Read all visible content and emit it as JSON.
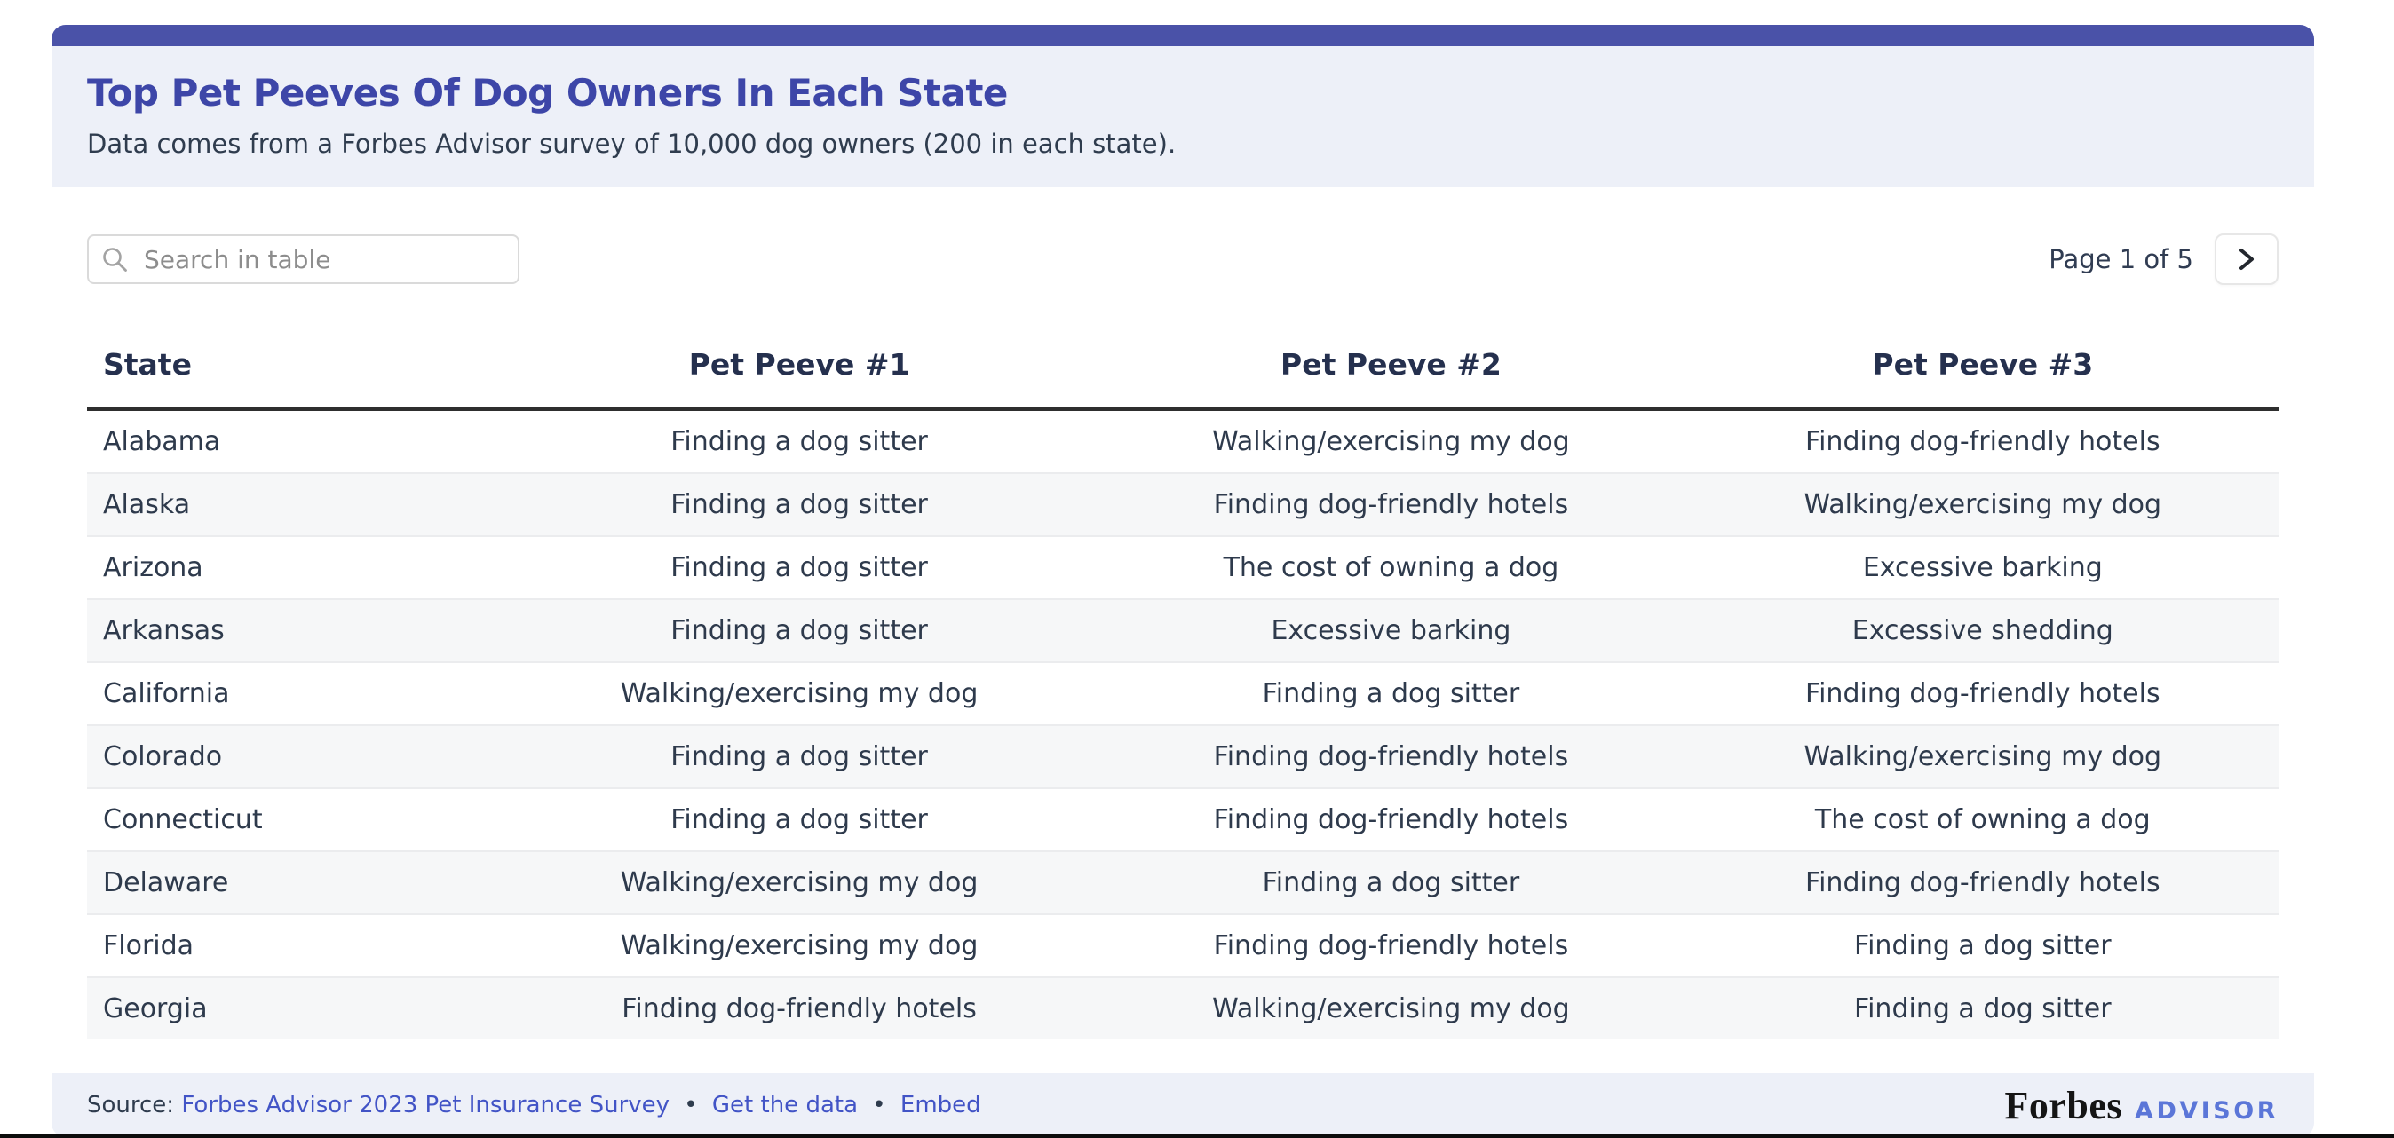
{
  "colors": {
    "bar": "#4a52a8",
    "panel": "#edf0f8",
    "title": "#3d46a8",
    "subtitle_text": "#2f3c4e",
    "header_text": "#25304e",
    "body_text": "#2e3a4c",
    "stripe": "#f6f7f8",
    "divider": "#ebecee",
    "header_rule": "#2e2e2e",
    "link": "#4254c6",
    "advisor": "#5b76d8",
    "page_text": "#303c52",
    "black_line": "#0c0c0c"
  },
  "header": {
    "title": "Top Pet Peeves Of Dog Owners In Each State",
    "subtitle": "Data comes from a Forbes Advisor survey of 10,000 dog owners (200 in each state)."
  },
  "toolbar": {
    "search_placeholder": "Search in table",
    "search_icon": "magnifier-icon",
    "pagination_label": "Page 1 of 5",
    "next_icon": "chevron-right-icon"
  },
  "table": {
    "columns": [
      "State",
      "Pet Peeve #1",
      "Pet Peeve #2",
      "Pet Peeve #3"
    ],
    "rows": [
      [
        "Alabama",
        "Finding a dog sitter",
        "Walking/exercising my dog",
        "Finding dog-friendly hotels"
      ],
      [
        "Alaska",
        "Finding a dog sitter",
        "Finding dog-friendly hotels",
        "Walking/exercising my dog"
      ],
      [
        "Arizona",
        "Finding a dog sitter",
        "The cost of owning a dog",
        "Excessive barking"
      ],
      [
        "Arkansas",
        "Finding a dog sitter",
        "Excessive barking",
        "Excessive shedding"
      ],
      [
        "California",
        "Walking/exercising my dog",
        "Finding a dog sitter",
        "Finding dog-friendly hotels"
      ],
      [
        "Colorado",
        "Finding a dog sitter",
        "Finding dog-friendly hotels",
        "Walking/exercising my dog"
      ],
      [
        "Connecticut",
        "Finding a dog sitter",
        "Finding dog-friendly hotels",
        "The cost of owning a dog"
      ],
      [
        "Delaware",
        "Walking/exercising my dog",
        "Finding a dog sitter",
        "Finding dog-friendly hotels"
      ],
      [
        "Florida",
        "Walking/exercising my dog",
        "Finding dog-friendly hotels",
        "Finding a dog sitter"
      ],
      [
        "Georgia",
        "Finding dog-friendly hotels",
        "Walking/exercising my dog",
        "Finding a dog sitter"
      ]
    ]
  },
  "footer": {
    "source_prefix": "Source:",
    "separator": "•",
    "links": [
      {
        "label": "Forbes Advisor 2023 Pet Insurance Survey"
      },
      {
        "label": "Get the data"
      },
      {
        "label": "Embed"
      }
    ],
    "logo": {
      "primary": "Forbes",
      "secondary": "ADVISOR"
    }
  }
}
